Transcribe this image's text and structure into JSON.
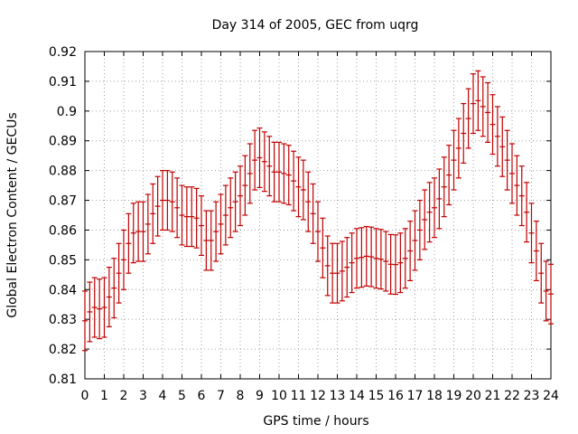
{
  "chart_data": {
    "type": "scatter",
    "title": "Day 314 of 2005, GEC from uqrg",
    "xlabel": "GPS time / hours",
    "ylabel": "Global Electron Content / GECUs",
    "xlim": [
      0,
      24
    ],
    "ylim": [
      0.81,
      0.92
    ],
    "grid": true,
    "error_bar_half_width": 0.01,
    "colors": {
      "series": "#c00000",
      "grid": "#a0a0a0",
      "frame": "#000000"
    },
    "x_ticks": [
      "0",
      "1",
      "2",
      "3",
      "4",
      "5",
      "6",
      "7",
      "8",
      "9",
      "10",
      "11",
      "12",
      "13",
      "14",
      "15",
      "16",
      "17",
      "18",
      "19",
      "20",
      "21",
      "22",
      "23",
      "24"
    ],
    "y_ticks": [
      "0.81",
      "0.82",
      "0.83",
      "0.84",
      "0.85",
      "0.86",
      "0.87",
      "0.88",
      "0.89",
      "0.9",
      "0.91",
      "0.92"
    ],
    "series": [
      {
        "x": [
          0.0,
          0.25,
          0.5,
          0.75,
          1.0,
          1.25,
          1.5,
          1.75,
          2.0,
          2.25,
          2.5,
          2.75,
          3.0,
          3.25,
          3.5,
          3.75,
          4.0,
          4.25,
          4.5,
          4.75,
          5.0,
          5.25,
          5.5,
          5.75,
          6.0,
          6.25,
          6.5,
          6.75,
          7.0,
          7.25,
          7.5,
          7.75,
          8.0,
          8.25,
          8.5,
          8.75,
          9.0,
          9.25,
          9.5,
          9.75,
          10.0,
          10.25,
          10.5,
          10.75,
          11.0,
          11.25,
          11.5,
          11.75,
          12.0,
          12.25,
          12.5,
          12.75,
          13.0,
          13.25,
          13.5,
          13.75,
          14.0,
          14.25,
          14.5,
          14.75,
          15.0,
          15.25,
          15.5,
          15.75,
          16.0,
          16.25,
          16.5,
          16.75,
          17.0,
          17.25,
          17.5,
          17.75,
          18.0,
          18.25,
          18.5,
          18.75,
          19.0,
          19.25,
          19.5,
          19.75,
          20.0,
          20.25,
          20.5,
          20.75,
          21.0,
          21.25,
          21.5,
          21.75,
          22.0,
          22.25,
          22.5,
          22.75,
          23.0,
          23.25,
          23.5,
          23.75,
          24.0
        ],
        "values": [
          0.8295,
          0.8325,
          0.834,
          0.8335,
          0.834,
          0.8375,
          0.8405,
          0.8455,
          0.85,
          0.8555,
          0.859,
          0.8595,
          0.8595,
          0.862,
          0.8655,
          0.868,
          0.87,
          0.87,
          0.8695,
          0.8675,
          0.865,
          0.8645,
          0.8645,
          0.864,
          0.8615,
          0.8565,
          0.8565,
          0.8595,
          0.862,
          0.865,
          0.8675,
          0.8695,
          0.8715,
          0.875,
          0.879,
          0.8835,
          0.8843,
          0.883,
          0.8815,
          0.8795,
          0.8795,
          0.879,
          0.8785,
          0.8765,
          0.8745,
          0.8735,
          0.8695,
          0.8655,
          0.8595,
          0.854,
          0.848,
          0.8455,
          0.8455,
          0.8462,
          0.8475,
          0.849,
          0.8505,
          0.8508,
          0.8512,
          0.851,
          0.8505,
          0.8502,
          0.8495,
          0.8485,
          0.8484,
          0.849,
          0.8505,
          0.853,
          0.8565,
          0.86,
          0.8635,
          0.866,
          0.8675,
          0.8705,
          0.8745,
          0.8785,
          0.8835,
          0.8875,
          0.8925,
          0.8975,
          0.9025,
          0.9035,
          0.9015,
          0.8995,
          0.8955,
          0.8915,
          0.888,
          0.8835,
          0.879,
          0.875,
          0.8715,
          0.866,
          0.859,
          0.853,
          0.8455,
          0.8395,
          0.8385
        ]
      }
    ]
  }
}
